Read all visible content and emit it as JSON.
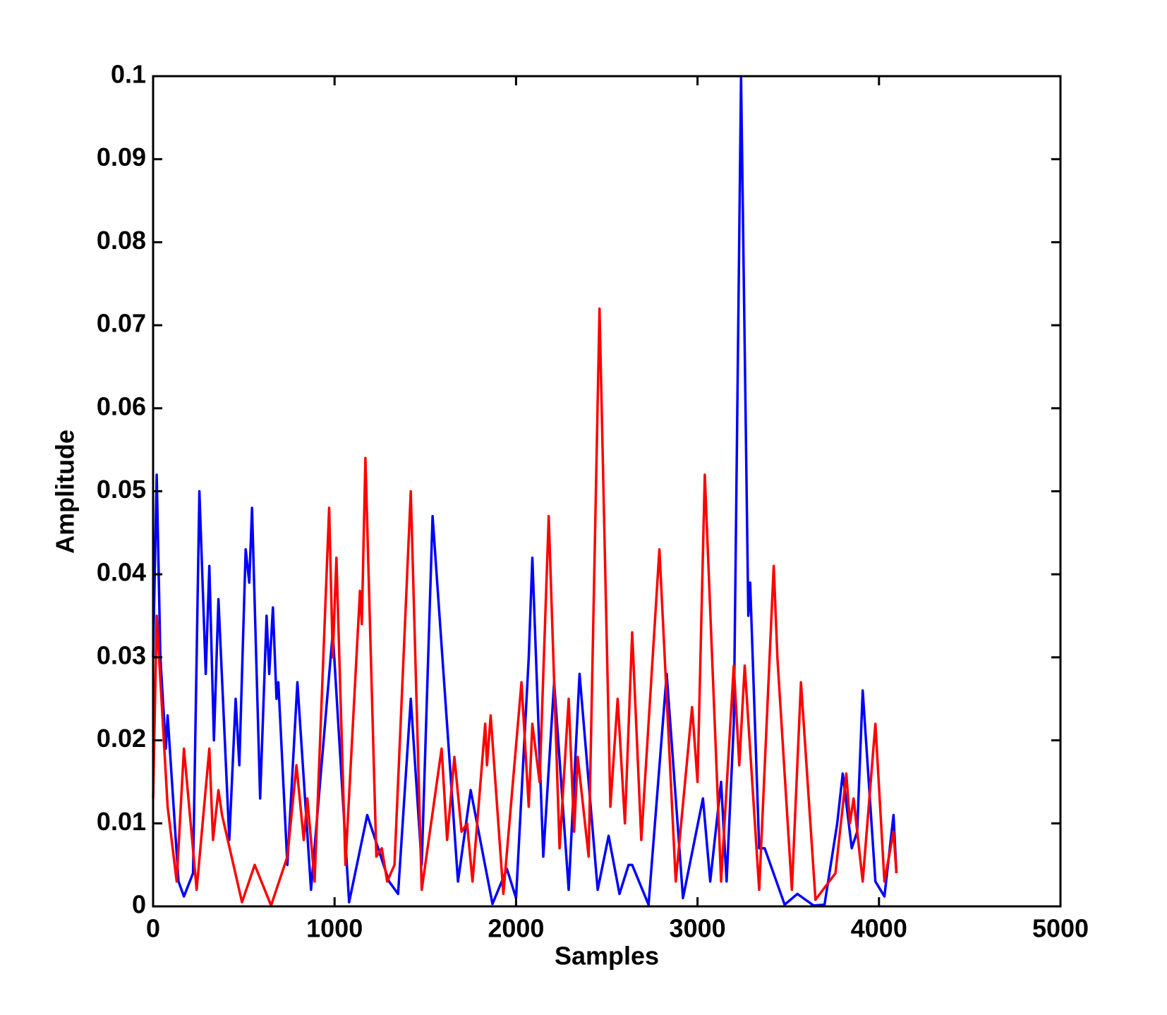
{
  "chart_data": {
    "type": "line",
    "xlabel": "Samples",
    "ylabel": "Amplitude",
    "xlim": [
      0,
      5000
    ],
    "xticks": [
      0,
      1000,
      2000,
      3000,
      4000,
      5000
    ],
    "ylim": [
      0,
      0.1
    ],
    "yticks": [
      0,
      0.01,
      0.02,
      0.03,
      0.04,
      0.05,
      0.06,
      0.07,
      0.08,
      0.09,
      0.1
    ],
    "grid": false,
    "series": [
      {
        "color": "#0000ff",
        "x": [
          0,
          20,
          40,
          70,
          80,
          140,
          170,
          220,
          255,
          290,
          310,
          335,
          360,
          420,
          455,
          475,
          510,
          530,
          545,
          590,
          625,
          640,
          660,
          680,
          690,
          740,
          795,
          870,
          990,
          1080,
          1180,
          1300,
          1350,
          1420,
          1480,
          1540,
          1680,
          1750,
          1870,
          1950,
          2000,
          2070,
          2090,
          2150,
          2210,
          2290,
          2350,
          2450,
          2510,
          2570,
          2620,
          2640,
          2730,
          2830,
          2920,
          3030,
          3070,
          3130,
          3160,
          3200,
          3240,
          3280,
          3290,
          3340,
          3370,
          3480,
          3550,
          3640,
          3700,
          3770,
          3800,
          3850,
          3880,
          3910,
          3980,
          4030,
          4080,
          4096
        ],
        "values": [
          0.03,
          0.052,
          0.03,
          0.019,
          0.023,
          0.003,
          0.0012,
          0.004,
          0.05,
          0.028,
          0.041,
          0.02,
          0.037,
          0.008,
          0.025,
          0.017,
          0.043,
          0.039,
          0.048,
          0.013,
          0.035,
          0.028,
          0.036,
          0.025,
          0.027,
          0.005,
          0.027,
          0.002,
          0.033,
          0.0005,
          0.011,
          0.003,
          0.0015,
          0.025,
          0.005,
          0.047,
          0.003,
          0.014,
          0.0003,
          0.0045,
          0.001,
          0.03,
          0.042,
          0.006,
          0.027,
          0.002,
          0.028,
          0.002,
          0.0085,
          0.0015,
          0.005,
          0.005,
          0.0002,
          0.028,
          0.001,
          0.013,
          0.003,
          0.015,
          0.003,
          0.022,
          0.1,
          0.035,
          0.039,
          0.007,
          0.007,
          0.0002,
          0.0015,
          0.0001,
          0.0002,
          0.01,
          0.016,
          0.007,
          0.009,
          0.026,
          0.003,
          0.0012,
          0.011,
          0.004
        ]
      },
      {
        "color": "#ff0000",
        "x": [
          0,
          20,
          80,
          130,
          170,
          240,
          310,
          330,
          360,
          380,
          490,
          560,
          650,
          740,
          790,
          830,
          850,
          890,
          970,
          990,
          1010,
          1060,
          1140,
          1150,
          1170,
          1230,
          1260,
          1290,
          1330,
          1420,
          1480,
          1590,
          1620,
          1660,
          1700,
          1730,
          1760,
          1830,
          1840,
          1860,
          1930,
          2030,
          2070,
          2090,
          2130,
          2180,
          2240,
          2290,
          2320,
          2340,
          2400,
          2460,
          2520,
          2560,
          2600,
          2640,
          2690,
          2790,
          2880,
          2970,
          3000,
          3040,
          3130,
          3200,
          3230,
          3260,
          3340,
          3420,
          3440,
          3520,
          3570,
          3650,
          3760,
          3820,
          3840,
          3860,
          3910,
          3980,
          4030,
          4080,
          4096
        ],
        "values": [
          0.013,
          0.035,
          0.012,
          0.003,
          0.019,
          0.002,
          0.019,
          0.008,
          0.014,
          0.011,
          0.0005,
          0.005,
          0.0001,
          0.006,
          0.017,
          0.008,
          0.013,
          0.003,
          0.048,
          0.03,
          0.042,
          0.005,
          0.038,
          0.034,
          0.054,
          0.006,
          0.007,
          0.003,
          0.005,
          0.05,
          0.002,
          0.019,
          0.008,
          0.018,
          0.009,
          0.01,
          0.003,
          0.022,
          0.017,
          0.023,
          0.0015,
          0.027,
          0.012,
          0.022,
          0.015,
          0.047,
          0.007,
          0.025,
          0.009,
          0.018,
          0.006,
          0.072,
          0.012,
          0.025,
          0.01,
          0.033,
          0.008,
          0.043,
          0.003,
          0.024,
          0.015,
          0.052,
          0.003,
          0.029,
          0.017,
          0.029,
          0.002,
          0.041,
          0.03,
          0.002,
          0.027,
          0.0008,
          0.004,
          0.016,
          0.01,
          0.013,
          0.003,
          0.022,
          0.003,
          0.009,
          0.004
        ]
      }
    ]
  }
}
